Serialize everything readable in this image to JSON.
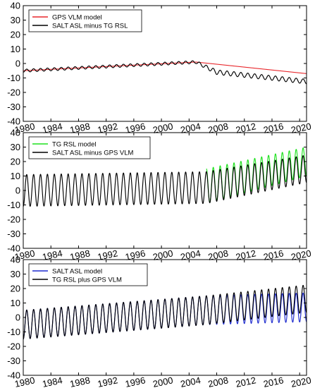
{
  "chart_data": [
    {
      "type": "line",
      "xlim": [
        1980,
        2021
      ],
      "ylim": [
        -40,
        40
      ],
      "x_ticks": [
        1980,
        1984,
        1988,
        1992,
        1996,
        2000,
        2004,
        2008,
        2012,
        2016,
        2020
      ],
      "y_ticks": [
        -40,
        -30,
        -20,
        -10,
        0,
        10,
        20,
        30,
        40
      ],
      "grid": false,
      "legend_position": "top-left",
      "series": [
        {
          "name": "GPS VLM model",
          "color": "#e8262b",
          "line_mode": "trend",
          "breakpoints": [
            [
              1980,
              -5
            ],
            [
              2005,
              1
            ],
            [
              2021,
              -7
            ]
          ],
          "seasonal_amplitude": 0
        },
        {
          "name": "SALT ASL minus TG RSL",
          "color": "#000000",
          "line_mode": "seasonal",
          "breakpoints": [
            [
              1980,
              -5
            ],
            [
              2005,
              1
            ],
            [
              2008,
              -6
            ],
            [
              2021,
              -12.5
            ]
          ],
          "seasonal_amplitude_by_period": [
            [
              1980,
              1
            ],
            [
              2005,
              1
            ],
            [
              2008,
              1.6
            ],
            [
              2021,
              1.6
            ]
          ]
        }
      ]
    },
    {
      "type": "line",
      "xlim": [
        1980,
        2021
      ],
      "ylim": [
        -40,
        40
      ],
      "x_ticks": [
        1980,
        1984,
        1988,
        1992,
        1996,
        2000,
        2004,
        2008,
        2012,
        2016,
        2020
      ],
      "y_ticks": [
        -40,
        -30,
        -20,
        -10,
        0,
        10,
        20,
        30,
        40
      ],
      "grid": false,
      "legend_position": "top-left",
      "series": [
        {
          "name": "TG RSL model",
          "color": "#1ee11e",
          "line_mode": "seasonal",
          "start": 2006.5,
          "breakpoints": [
            [
              2006.5,
              3
            ],
            [
              2021,
              20
            ]
          ],
          "seasonal_amplitude_by_period": [
            [
              2006.5,
              12
            ],
            [
              2021,
              10
            ]
          ]
        },
        {
          "name": "SALT ASL minus GPS VLM",
          "color": "#000000",
          "line_mode": "seasonal",
          "breakpoints": [
            [
              1980,
              0
            ],
            [
              2006.5,
              2
            ],
            [
              2021,
              15
            ]
          ],
          "seasonal_amplitude_by_period": [
            [
              1980,
              11
            ],
            [
              2006.5,
              11
            ],
            [
              2021,
              9.5
            ]
          ]
        }
      ]
    },
    {
      "type": "line",
      "xlim": [
        1980,
        2021
      ],
      "ylim": [
        -40,
        40
      ],
      "x_ticks": [
        1980,
        1984,
        1988,
        1992,
        1996,
        2000,
        2004,
        2008,
        2012,
        2016,
        2020
      ],
      "y_ticks": [
        -40,
        -30,
        -20,
        -10,
        0,
        10,
        20,
        30,
        40
      ],
      "grid": false,
      "legend_position": "top-left",
      "series": [
        {
          "name": "SALT ASL model",
          "color": "#1f2ccf",
          "line_mode": "seasonal",
          "breakpoints": [
            [
              1980,
              -5
            ],
            [
              2006.5,
              5
            ],
            [
              2021,
              7
            ]
          ],
          "seasonal_amplitude_by_period": [
            [
              1980,
              10
            ],
            [
              2006.5,
              10
            ],
            [
              2021,
              10
            ]
          ]
        },
        {
          "name": "TG RSL plus GPS VLM",
          "color": "#000000",
          "line_mode": "seasonal",
          "breakpoints": [
            [
              1980,
              -5
            ],
            [
              2006.5,
              5
            ],
            [
              2021,
              13
            ]
          ],
          "seasonal_amplitude_by_period": [
            [
              1980,
              10
            ],
            [
              2006.5,
              10
            ],
            [
              2021,
              9.5
            ]
          ]
        }
      ]
    }
  ]
}
